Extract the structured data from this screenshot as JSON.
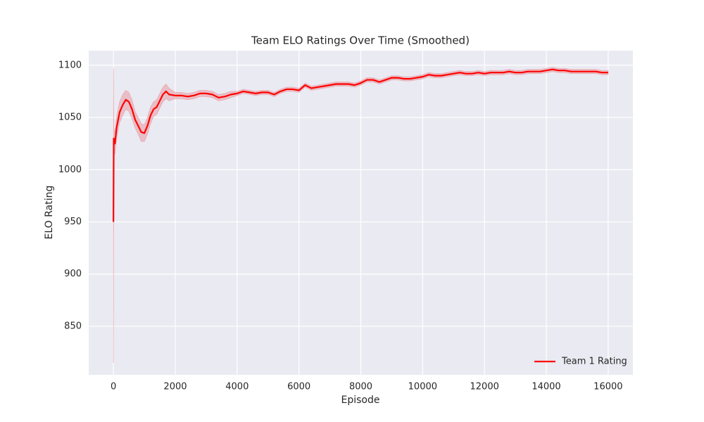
{
  "chart_data": {
    "type": "line",
    "title": "Team ELO Ratings Over Time (Smoothed)",
    "xlabel": "Episode",
    "ylabel": "ELO Rating",
    "x": [
      0,
      10,
      50,
      100,
      200,
      300,
      400,
      500,
      600,
      700,
      800,
      900,
      1000,
      1100,
      1200,
      1300,
      1400,
      1500,
      1600,
      1700,
      1800,
      2000,
      2200,
      2400,
      2600,
      2800,
      3000,
      3200,
      3400,
      3600,
      3800,
      4000,
      4200,
      4400,
      4600,
      4800,
      5000,
      5200,
      5400,
      5600,
      5800,
      6000,
      6200,
      6400,
      6600,
      6800,
      7000,
      7200,
      7400,
      7600,
      7800,
      8000,
      8200,
      8400,
      8600,
      8800,
      9000,
      9200,
      9400,
      9600,
      9800,
      10000,
      10200,
      10400,
      10600,
      10800,
      11000,
      11200,
      11400,
      11600,
      11800,
      12000,
      12200,
      12400,
      12600,
      12800,
      13000,
      13200,
      13400,
      13600,
      13800,
      14000,
      14200,
      14400,
      14600,
      14800,
      15000,
      15200,
      15400,
      15600,
      15800,
      16000
    ],
    "series": [
      {
        "name": "Team 1 Rating",
        "color": "#ff0000",
        "band_color": "#e8a0a8",
        "values": [
          950,
          1030,
          1025,
          1040,
          1055,
          1062,
          1067,
          1065,
          1058,
          1048,
          1042,
          1036,
          1035,
          1042,
          1052,
          1058,
          1060,
          1066,
          1072,
          1075,
          1072,
          1071,
          1071,
          1070,
          1071,
          1073,
          1073,
          1072,
          1069,
          1070,
          1072,
          1073,
          1075,
          1074,
          1073,
          1074,
          1074,
          1072,
          1075,
          1077,
          1077,
          1076,
          1081,
          1078,
          1079,
          1080,
          1081,
          1082,
          1082,
          1082,
          1081,
          1083,
          1086,
          1086,
          1084,
          1086,
          1088,
          1088,
          1087,
          1087,
          1088,
          1089,
          1091,
          1090,
          1090,
          1091,
          1092,
          1093,
          1092,
          1092,
          1093,
          1092,
          1093,
          1093,
          1093,
          1094,
          1093,
          1093,
          1094,
          1094,
          1094,
          1095,
          1096,
          1095,
          1095,
          1094,
          1094,
          1094,
          1094,
          1094,
          1093,
          1093
        ],
        "upper": [
          1097,
          1040,
          1035,
          1050,
          1065,
          1072,
          1076,
          1074,
          1067,
          1056,
          1050,
          1044,
          1043,
          1050,
          1060,
          1065,
          1067,
          1073,
          1079,
          1082,
          1078,
          1074,
          1074,
          1073,
          1074,
          1076,
          1076,
          1075,
          1072,
          1073,
          1075,
          1075,
          1077,
          1076,
          1075,
          1076,
          1076,
          1074,
          1077,
          1079,
          1079,
          1078,
          1083,
          1080,
          1081,
          1082,
          1083,
          1084,
          1084,
          1084,
          1083,
          1085,
          1088,
          1088,
          1086,
          1088,
          1090,
          1090,
          1089,
          1089,
          1090,
          1091,
          1093,
          1092,
          1092,
          1093,
          1094,
          1095,
          1094,
          1094,
          1095,
          1094,
          1095,
          1095,
          1095,
          1096,
          1095,
          1095,
          1096,
          1096,
          1096,
          1097,
          1098,
          1097,
          1097,
          1096,
          1096,
          1096,
          1096,
          1096,
          1095,
          1095
        ],
        "lower": [
          815,
          1015,
          1015,
          1030,
          1045,
          1052,
          1058,
          1056,
          1049,
          1040,
          1034,
          1027,
          1027,
          1034,
          1044,
          1051,
          1053,
          1059,
          1065,
          1068,
          1066,
          1068,
          1068,
          1067,
          1068,
          1070,
          1070,
          1069,
          1066,
          1067,
          1069,
          1071,
          1073,
          1072,
          1071,
          1072,
          1072,
          1070,
          1073,
          1075,
          1075,
          1074,
          1079,
          1076,
          1077,
          1078,
          1079,
          1080,
          1080,
          1080,
          1079,
          1081,
          1084,
          1084,
          1082,
          1084,
          1086,
          1086,
          1085,
          1085,
          1086,
          1087,
          1089,
          1088,
          1088,
          1089,
          1090,
          1091,
          1090,
          1090,
          1091,
          1090,
          1091,
          1091,
          1091,
          1092,
          1091,
          1091,
          1092,
          1092,
          1092,
          1093,
          1094,
          1093,
          1093,
          1092,
          1092,
          1092,
          1092,
          1092,
          1091,
          1091
        ]
      }
    ],
    "xlim": [
      -800,
      16800
    ],
    "ylim": [
      803.5,
      1114
    ],
    "xticks": [
      0,
      2000,
      4000,
      6000,
      8000,
      10000,
      12000,
      14000,
      16000
    ],
    "yticks": [
      850,
      900,
      950,
      1000,
      1050,
      1100
    ],
    "grid": true,
    "legend": "lower right"
  }
}
